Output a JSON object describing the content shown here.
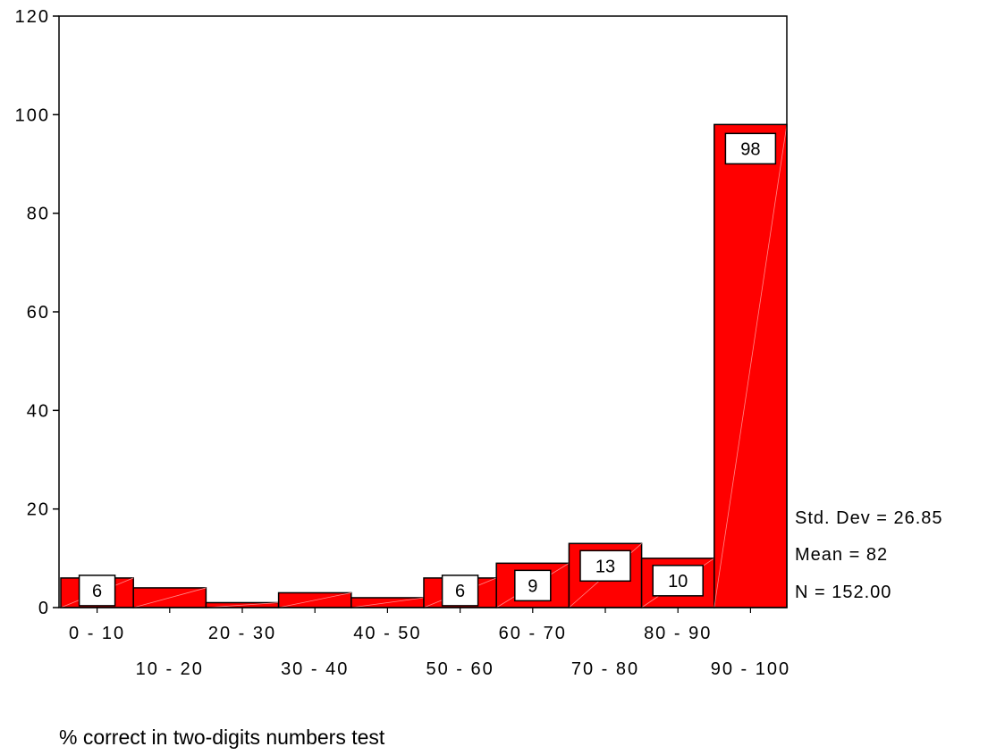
{
  "chart_data": {
    "type": "bar",
    "categories": [
      "0 - 10",
      "10 - 20",
      "20 - 30",
      "30 - 40",
      "40 - 50",
      "50 - 60",
      "60 - 70",
      "70 - 80",
      "80 - 90",
      "90 - 100"
    ],
    "values": [
      6,
      4,
      1,
      3,
      2,
      6,
      9,
      13,
      10,
      98
    ],
    "data_labels": [
      "6",
      "",
      "",
      "",
      "",
      "6",
      "9",
      "13",
      "10",
      "98"
    ],
    "y_ticks": [
      "0",
      "20",
      "40",
      "60",
      "80",
      "100",
      "120"
    ],
    "ylim": [
      0,
      120
    ],
    "xlabel": "% correct in two-digits numbers test",
    "bar_color": "#ff0000",
    "stats": [
      "Std. Dev = 26.85",
      "Mean = 82",
      "N = 152.00"
    ]
  }
}
